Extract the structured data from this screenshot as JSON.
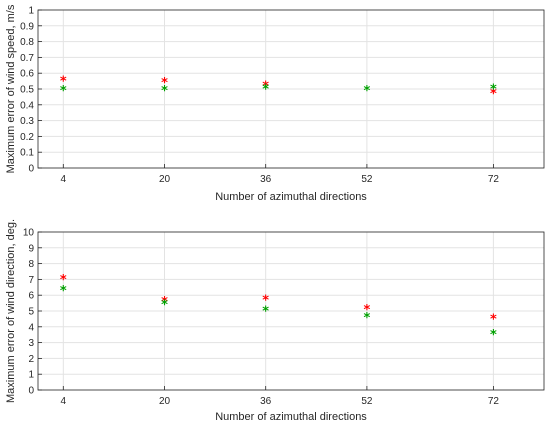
{
  "chart_data": [
    {
      "type": "scatter",
      "xlabel": "Number of azimuthal directions",
      "ylabel": "Maximum error of wind speed, m/s",
      "x_ticks": [
        4,
        20,
        36,
        52,
        72
      ],
      "y_ticks": [
        0,
        0.1,
        0.2,
        0.3,
        0.4,
        0.5,
        0.6,
        0.7,
        0.8,
        0.9,
        1
      ],
      "xlim": [
        0,
        80
      ],
      "ylim": [
        0,
        1
      ],
      "grid": true,
      "marker": "*",
      "series": [
        {
          "color": "#ff0000",
          "x": [
            4,
            20,
            36,
            72
          ],
          "y": [
            0.55,
            0.54,
            0.52,
            0.47
          ]
        },
        {
          "color": "#00a000",
          "x": [
            4,
            20,
            36,
            52,
            72
          ],
          "y": [
            0.49,
            0.49,
            0.5,
            0.49,
            0.5
          ]
        }
      ]
    },
    {
      "type": "scatter",
      "xlabel": "Number of azimuthal directions",
      "ylabel": "Maximum error of wind direction, deg.",
      "x_ticks": [
        4,
        20,
        36,
        52,
        72
      ],
      "y_ticks": [
        0,
        1,
        2,
        3,
        4,
        5,
        6,
        7,
        8,
        9,
        10
      ],
      "xlim": [
        0,
        80
      ],
      "ylim": [
        0,
        10
      ],
      "grid": true,
      "marker": "*",
      "series": [
        {
          "color": "#ff0000",
          "x": [
            4,
            20,
            36,
            52,
            72
          ],
          "y": [
            7.0,
            5.6,
            5.7,
            5.1,
            4.5
          ]
        },
        {
          "color": "#00a000",
          "x": [
            4,
            20,
            36,
            52,
            72
          ],
          "y": [
            6.3,
            5.4,
            5.0,
            4.6,
            3.5
          ]
        }
      ]
    }
  ]
}
